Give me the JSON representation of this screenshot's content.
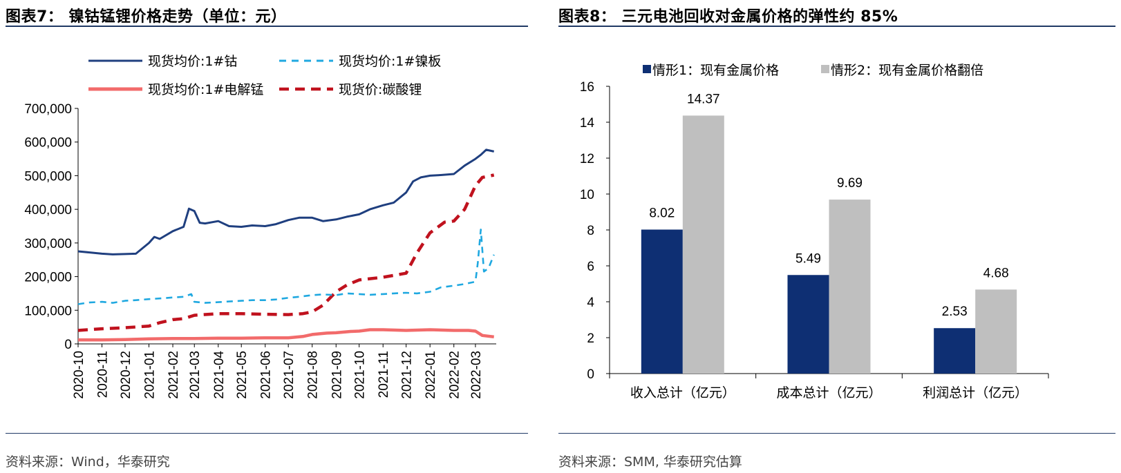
{
  "left": {
    "title": "图表7：   镍钴锰锂价格走势（单位：元）",
    "source": "资料来源：Wind，华泰研究"
  },
  "right": {
    "title": "图表8：   三元电池回收对金属价格的弹性约 85%",
    "source": "资料来源：SMM, 华泰研究估算"
  },
  "chart_data": [
    {
      "type": "line",
      "title": "镍钴锰锂价格走势（单位：元）",
      "ylim": [
        0,
        700000
      ],
      "yticks": [
        "0",
        "100,000",
        "200,000",
        "300,000",
        "400,000",
        "500,000",
        "600,000",
        "700,000"
      ],
      "yticks_values": [
        0,
        100000,
        200000,
        300000,
        400000,
        500000,
        600000,
        700000
      ],
      "x_ticks": [
        "2020-10",
        "2020-11",
        "2020-12",
        "2021-01",
        "2021-02",
        "2021-03",
        "2021-04",
        "2021-05",
        "2021-06",
        "2021-07",
        "2021-08",
        "2021-09",
        "2021-10",
        "2021-11",
        "2021-12",
        "2022-01",
        "2022-02",
        "2022-03"
      ],
      "legend_placement": "top",
      "grid": false,
      "series": [
        {
          "name": "现货均价:1#钴",
          "color": "#1F3F7F",
          "style": "solid",
          "x": [
            "2020-10-01",
            "2020-10-15",
            "2020-11-01",
            "2020-11-15",
            "2020-12-01",
            "2020-12-15",
            "2021-01-01",
            "2021-01-08",
            "2021-01-15",
            "2021-02-01",
            "2021-02-15",
            "2021-02-22",
            "2021-03-01",
            "2021-03-08",
            "2021-03-15",
            "2021-04-01",
            "2021-04-15",
            "2021-05-01",
            "2021-05-15",
            "2021-06-01",
            "2021-06-15",
            "2021-07-01",
            "2021-07-15",
            "2021-08-01",
            "2021-08-15",
            "2021-09-01",
            "2021-09-15",
            "2021-10-01",
            "2021-10-15",
            "2021-11-01",
            "2021-11-15",
            "2021-12-01",
            "2021-12-10",
            "2021-12-20",
            "2022-01-01",
            "2022-01-15",
            "2022-02-01",
            "2022-02-15",
            "2022-03-01",
            "2022-03-08",
            "2022-03-15",
            "2022-03-25"
          ],
          "y": [
            275000,
            272000,
            268000,
            266000,
            267000,
            268000,
            300000,
            318000,
            312000,
            335000,
            348000,
            402000,
            395000,
            360000,
            358000,
            365000,
            350000,
            348000,
            352000,
            350000,
            356000,
            368000,
            375000,
            375000,
            365000,
            370000,
            378000,
            385000,
            400000,
            412000,
            420000,
            450000,
            483000,
            495000,
            500000,
            502000,
            505000,
            530000,
            550000,
            562000,
            577000,
            572000
          ]
        },
        {
          "name": "现货均价:1#镍板",
          "color": "#1FA8E0",
          "style": "dash",
          "x": [
            "2020-10-01",
            "2020-10-15",
            "2020-11-01",
            "2020-11-15",
            "2020-12-01",
            "2020-12-15",
            "2021-01-01",
            "2021-01-15",
            "2021-02-01",
            "2021-02-15",
            "2021-02-25",
            "2021-03-01",
            "2021-03-15",
            "2021-04-01",
            "2021-04-15",
            "2021-05-01",
            "2021-05-15",
            "2021-06-01",
            "2021-06-15",
            "2021-07-01",
            "2021-07-15",
            "2021-08-01",
            "2021-08-15",
            "2021-09-01",
            "2021-09-15",
            "2021-10-01",
            "2021-10-15",
            "2021-11-01",
            "2021-11-15",
            "2021-12-01",
            "2021-12-15",
            "2022-01-01",
            "2022-01-15",
            "2022-02-01",
            "2022-02-15",
            "2022-03-01",
            "2022-03-04",
            "2022-03-08",
            "2022-03-12",
            "2022-03-18",
            "2022-03-25"
          ],
          "y": [
            118000,
            123000,
            125000,
            122000,
            128000,
            130000,
            133000,
            135000,
            138000,
            140000,
            148000,
            125000,
            122000,
            124000,
            126000,
            128000,
            130000,
            130000,
            132000,
            137000,
            140000,
            145000,
            147000,
            145000,
            150000,
            148000,
            146000,
            148000,
            150000,
            152000,
            150000,
            155000,
            168000,
            173000,
            178000,
            185000,
            240000,
            340000,
            215000,
            225000,
            265000
          ]
        },
        {
          "name": "现货均价:1#电解锰",
          "color": "#F26B6B",
          "style": "solid",
          "x": [
            "2020-10-01",
            "2020-11-01",
            "2020-12-01",
            "2021-01-01",
            "2021-02-01",
            "2021-03-01",
            "2021-04-01",
            "2021-05-01",
            "2021-06-01",
            "2021-07-01",
            "2021-07-20",
            "2021-08-01",
            "2021-08-20",
            "2021-09-01",
            "2021-09-20",
            "2021-10-01",
            "2021-10-15",
            "2021-11-01",
            "2021-12-01",
            "2022-01-01",
            "2022-02-01",
            "2022-02-20",
            "2022-03-01",
            "2022-03-10",
            "2022-03-25"
          ],
          "y": [
            12000,
            12000,
            13000,
            15000,
            16000,
            16000,
            17000,
            17000,
            18000,
            18000,
            22000,
            28000,
            32000,
            33000,
            37000,
            38000,
            42000,
            42000,
            40000,
            42000,
            40000,
            40000,
            38000,
            25000,
            21000
          ]
        },
        {
          "name": "现货价:碳酸锂",
          "color": "#C0121E",
          "style": "dash",
          "x": [
            "2020-10-01",
            "2020-11-01",
            "2020-12-01",
            "2021-01-01",
            "2021-01-15",
            "2021-02-01",
            "2021-02-15",
            "2021-03-01",
            "2021-04-01",
            "2021-05-01",
            "2021-06-01",
            "2021-07-01",
            "2021-07-20",
            "2021-08-01",
            "2021-08-15",
            "2021-09-01",
            "2021-09-15",
            "2021-10-01",
            "2021-11-01",
            "2021-12-01",
            "2021-12-15",
            "2022-01-01",
            "2022-01-20",
            "2022-02-01",
            "2022-02-15",
            "2022-03-01",
            "2022-03-10",
            "2022-03-25"
          ],
          "y": [
            40000,
            45000,
            48000,
            53000,
            63000,
            72000,
            75000,
            85000,
            90000,
            90000,
            88000,
            87000,
            90000,
            95000,
            115000,
            155000,
            175000,
            190000,
            198000,
            210000,
            270000,
            330000,
            362000,
            365000,
            400000,
            470000,
            495000,
            502000
          ]
        }
      ]
    },
    {
      "type": "bar",
      "title": "三元电池回收对金属价格的弹性约 85%",
      "categories": [
        "收入总计（亿元）",
        "成本总计（亿元）",
        "利润总计（亿元）"
      ],
      "ylim": [
        0,
        16
      ],
      "yticks": [
        "0",
        "2",
        "4",
        "6",
        "8",
        "10",
        "12",
        "14",
        "16"
      ],
      "yticks_values": [
        0,
        2,
        4,
        6,
        8,
        10,
        12,
        14,
        16
      ],
      "legend_placement": "top",
      "grid": false,
      "series": [
        {
          "name": "情形1：现有金属价格",
          "color": "#0E2F73",
          "values": [
            8.02,
            5.49,
            2.53
          ],
          "labels": [
            "8.02",
            "5.49",
            "2.53"
          ]
        },
        {
          "name": "情形2：现有金属价格翻倍",
          "color": "#BFBFBF",
          "values": [
            14.37,
            9.69,
            4.68
          ],
          "labels": [
            "14.37",
            "9.69",
            "4.68"
          ]
        }
      ]
    }
  ]
}
